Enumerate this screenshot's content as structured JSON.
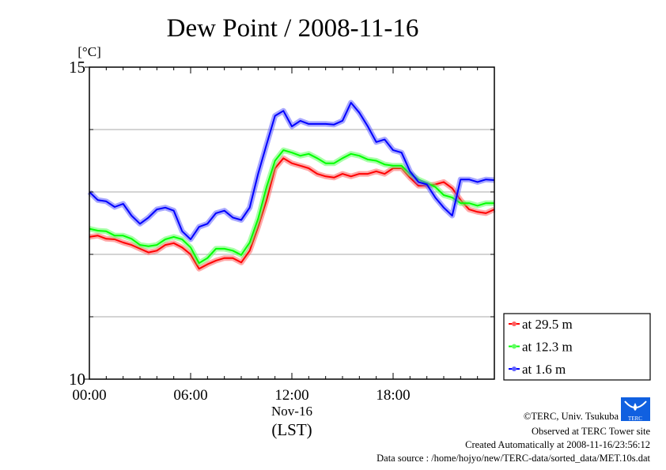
{
  "chart_data": {
    "type": "line",
    "title": "Dew Point / 2008-11-16",
    "ylabel": "[°C]",
    "xlabel_date": "Nov-16",
    "xlabel_tz": "(LST)",
    "ylim": [
      10,
      15
    ],
    "xlim_hours": [
      0,
      24
    ],
    "y_tick_labels": [
      {
        "value": 15,
        "label": "15"
      },
      {
        "value": 10,
        "label": "10"
      }
    ],
    "y_grid": [
      11,
      12,
      13,
      14
    ],
    "x_tick_labels": [
      {
        "hour": 0,
        "label": "00:00"
      },
      {
        "hour": 6,
        "label": "06:00"
      },
      {
        "hour": 12,
        "label": "12:00"
      },
      {
        "hour": 18,
        "label": "18:00"
      }
    ],
    "x_step_hours": 0.5,
    "legend_position": "bottom-right outside",
    "series": [
      {
        "name": "at 29.5 m",
        "color": "#ff0000",
        "halo": "#ff6060",
        "values": [
          12.28,
          12.3,
          12.25,
          12.24,
          12.19,
          12.15,
          12.09,
          12.03,
          12.06,
          12.15,
          12.18,
          12.11,
          12.0,
          11.77,
          11.84,
          11.9,
          11.94,
          11.94,
          11.87,
          12.06,
          12.44,
          12.87,
          13.38,
          13.54,
          13.46,
          13.42,
          13.38,
          13.29,
          13.25,
          13.23,
          13.29,
          13.25,
          13.29,
          13.29,
          13.33,
          13.29,
          13.38,
          13.38,
          13.23,
          13.1,
          13.1,
          13.12,
          13.16,
          13.06,
          12.87,
          12.72,
          12.68,
          12.66,
          12.72
        ]
      },
      {
        "name": "at 12.3 m",
        "color": "#00ff00",
        "halo": "#60ff60",
        "values": [
          12.41,
          12.38,
          12.37,
          12.3,
          12.3,
          12.25,
          12.15,
          12.13,
          12.15,
          12.24,
          12.28,
          12.24,
          12.11,
          11.86,
          11.94,
          12.09,
          12.09,
          12.06,
          11.99,
          12.19,
          12.57,
          13.08,
          13.5,
          13.67,
          13.63,
          13.58,
          13.61,
          13.54,
          13.46,
          13.46,
          13.54,
          13.61,
          13.58,
          13.52,
          13.5,
          13.44,
          13.42,
          13.42,
          13.29,
          13.2,
          13.14,
          13.08,
          12.95,
          12.91,
          12.82,
          12.82,
          12.78,
          12.82,
          12.82
        ]
      },
      {
        "name": "at 1.6 m",
        "color": "#0000ff",
        "halo": "#6060ff",
        "values": [
          13.0,
          12.87,
          12.85,
          12.76,
          12.81,
          12.62,
          12.49,
          12.59,
          12.72,
          12.75,
          12.7,
          12.37,
          12.24,
          12.44,
          12.49,
          12.66,
          12.7,
          12.59,
          12.55,
          12.75,
          13.29,
          13.76,
          14.22,
          14.3,
          14.05,
          14.14,
          14.09,
          14.09,
          14.09,
          14.08,
          14.14,
          14.43,
          14.27,
          14.05,
          13.8,
          13.84,
          13.67,
          13.63,
          13.33,
          13.16,
          13.12,
          12.91,
          12.75,
          12.62,
          13.2,
          13.2,
          13.16,
          13.2,
          13.19
        ]
      }
    ]
  },
  "footer": {
    "copyright": "©TERC, Univ. Tsukuba",
    "observed": "Observed at TERC Tower site",
    "created": "Created Automatically at 2008-11-16/23:56:12",
    "source": "Data source : /home/hojyo/new/TERC-data/sorted_data/MET.10s.dat",
    "logo_text": "TERC"
  }
}
